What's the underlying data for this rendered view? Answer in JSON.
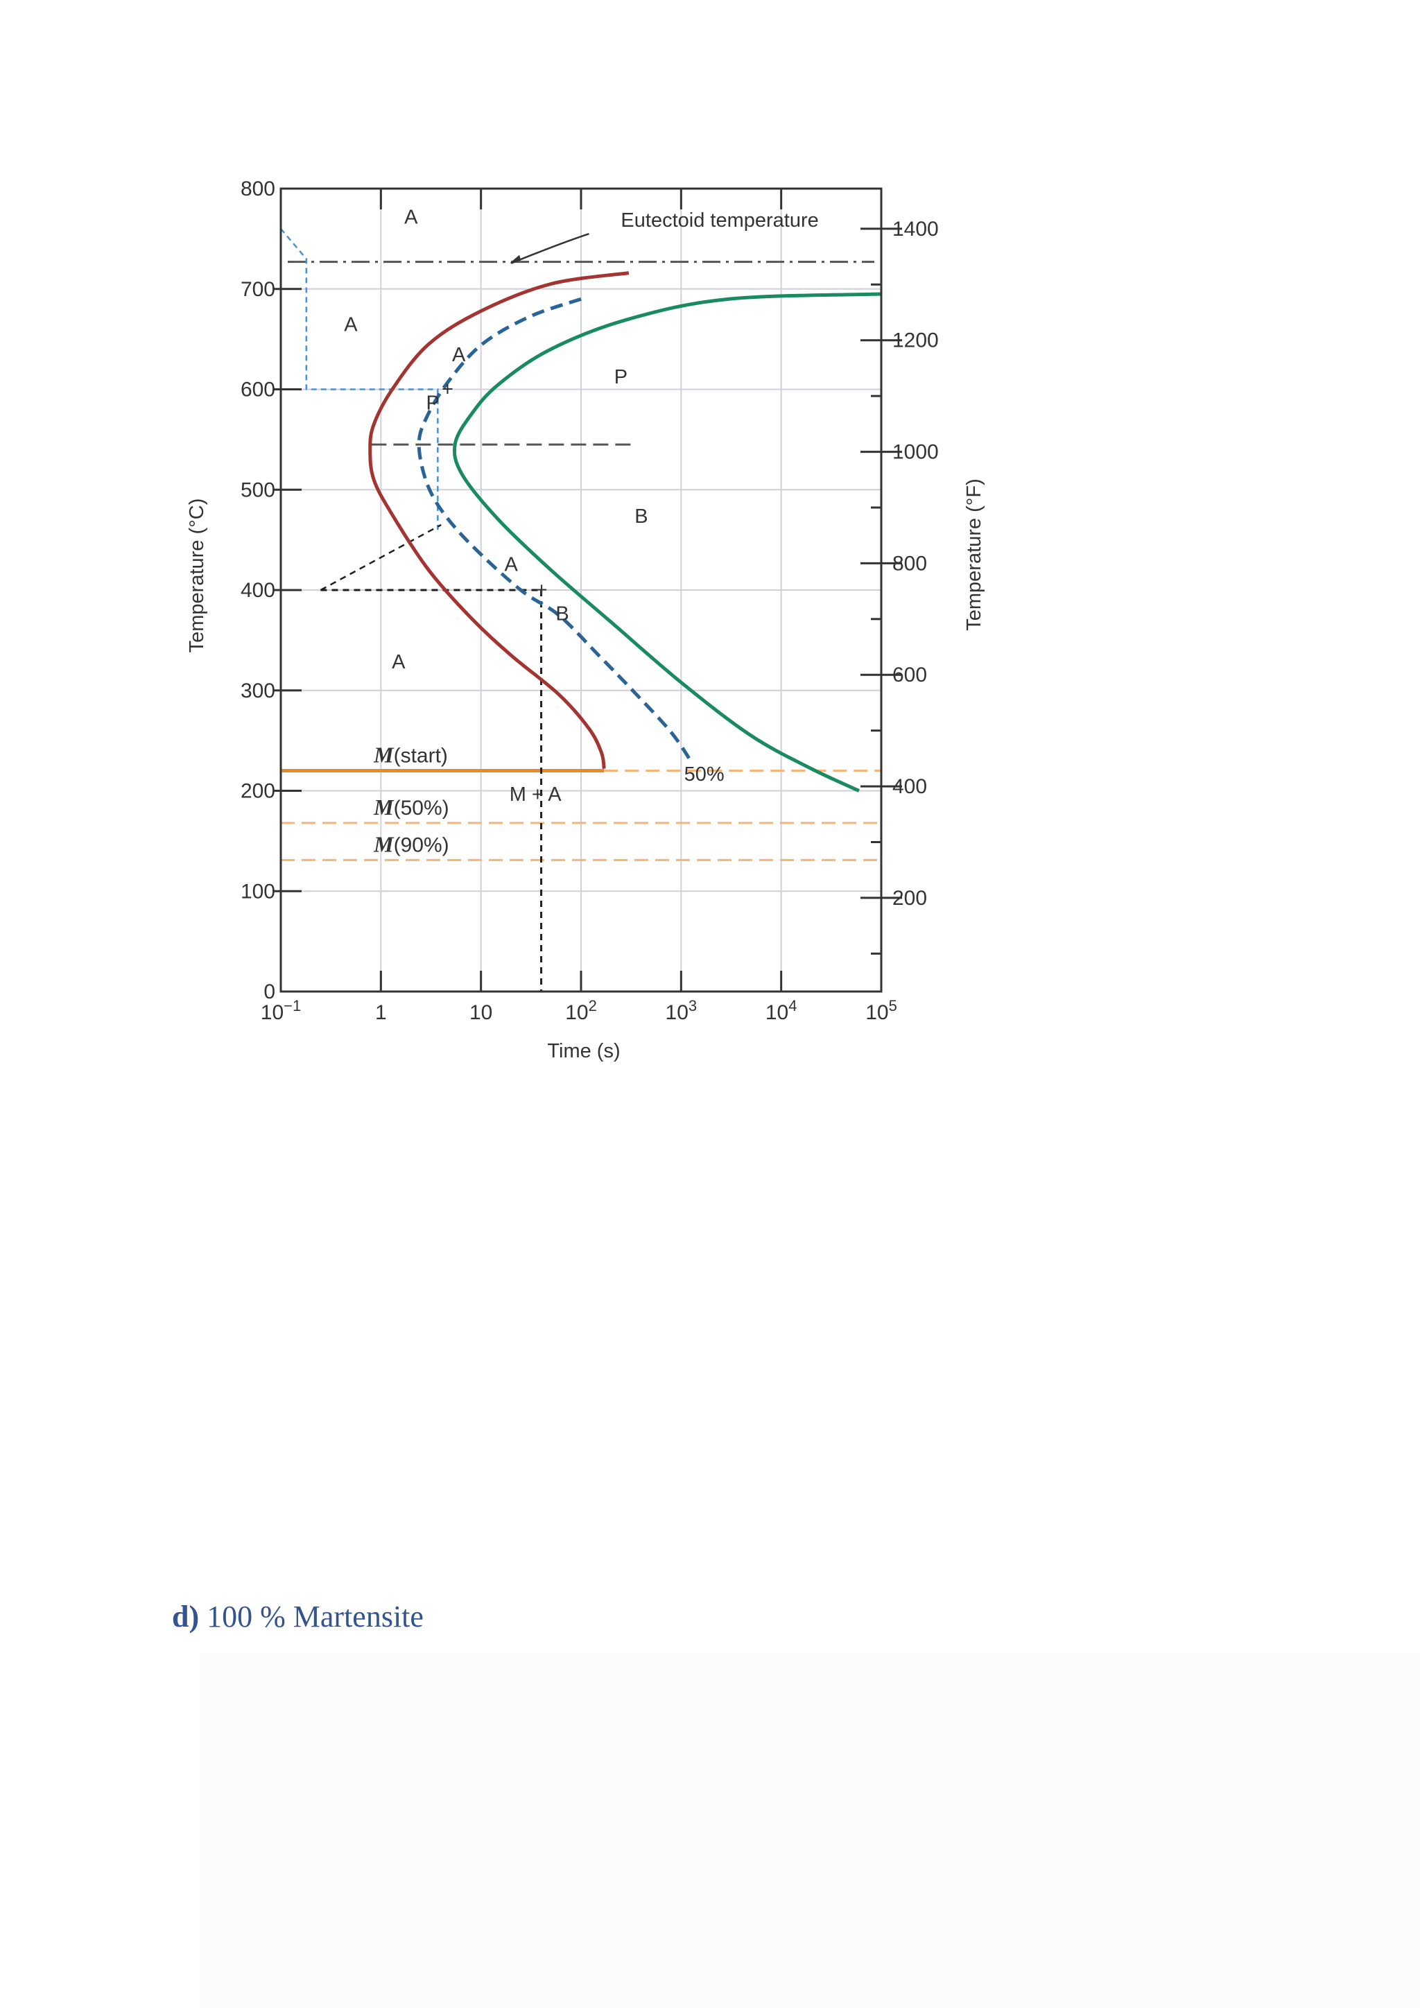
{
  "chart_data": {
    "type": "line",
    "x_scale": "log",
    "xlim": [
      0.1,
      100000
    ],
    "ylim": [
      0,
      800
    ],
    "y2lim_F": [
      32,
      1472
    ],
    "xlabel": "Time (s)",
    "ylabel": "Temperature (°C)",
    "y2label": "Temperature (°F)",
    "x_ticks": [
      {
        "v": 0.1,
        "base": "10",
        "exp": "−1"
      },
      {
        "v": 1,
        "base": "1",
        "exp": ""
      },
      {
        "v": 10,
        "base": "10",
        "exp": ""
      },
      {
        "v": 100,
        "base": "10",
        "exp": "2"
      },
      {
        "v": 1000,
        "base": "10",
        "exp": "3"
      },
      {
        "v": 10000,
        "base": "10",
        "exp": "4"
      },
      {
        "v": 100000,
        "base": "10",
        "exp": "5"
      }
    ],
    "y_ticks": [
      0,
      100,
      200,
      300,
      400,
      500,
      600,
      700,
      800
    ],
    "y2_ticks": [
      200,
      400,
      600,
      800,
      1000,
      1200,
      1400
    ],
    "eutectoid_temperature": 727,
    "eutectoid_label": "Eutectoid temperature",
    "series": [
      {
        "key": "start",
        "color": "#a43431",
        "dash": "",
        "points": [
          [
            300,
            716
          ],
          [
            50,
            705
          ],
          [
            10,
            678
          ],
          [
            3,
            645
          ],
          [
            1.3,
            600
          ],
          [
            0.85,
            565
          ],
          [
            0.78,
            540
          ],
          [
            0.85,
            510
          ],
          [
            1.3,
            475
          ],
          [
            3,
            420
          ],
          [
            8,
            372
          ],
          [
            20,
            335
          ],
          [
            60,
            296
          ],
          [
            120,
            262
          ],
          [
            160,
            238
          ],
          [
            170,
            222
          ]
        ]
      },
      {
        "key": "half",
        "color": "#2a6496",
        "dash": "18,10",
        "points": [
          [
            100,
            690
          ],
          [
            30,
            672
          ],
          [
            10,
            644
          ],
          [
            4.5,
            605
          ],
          [
            2.8,
            570
          ],
          [
            2.4,
            545
          ],
          [
            2.8,
            510
          ],
          [
            4,
            480
          ],
          [
            8,
            445
          ],
          [
            25,
            400
          ],
          [
            60,
            375
          ],
          [
            150,
            335
          ],
          [
            350,
            297
          ],
          [
            800,
            258
          ],
          [
            1300,
            227
          ]
        ]
      },
      {
        "key": "finish",
        "color": "#1a8a60",
        "dash": "",
        "points": [
          [
            100000,
            695
          ],
          [
            3000,
            690
          ],
          [
            300,
            670
          ],
          [
            50,
            640
          ],
          [
            15,
            605
          ],
          [
            8,
            575
          ],
          [
            5.5,
            545
          ],
          [
            6.5,
            515
          ],
          [
            15,
            470
          ],
          [
            50,
            420
          ],
          [
            200,
            368
          ],
          [
            1000,
            308
          ],
          [
            5000,
            255
          ],
          [
            20000,
            222
          ],
          [
            60000,
            200
          ]
        ]
      }
    ],
    "martensite_lines": [
      {
        "label": "M(start)",
        "letter": "M",
        "rest": "(start)",
        "temp": 220
      },
      {
        "label": "M(50%)",
        "letter": "M",
        "rest": "(50%)",
        "temp": 168
      },
      {
        "label": "M(90%)",
        "letter": "M",
        "rest": "(90%)",
        "temp": 131
      }
    ],
    "region_labels": [
      {
        "text": "A",
        "t": 2,
        "T": 765
      },
      {
        "text": "A",
        "t": 0.5,
        "T": 658
      },
      {
        "text": "A",
        "t": 6,
        "T": 628
      },
      {
        "text": "P",
        "t": 250,
        "T": 606
      },
      {
        "text": "P",
        "t": 3.3,
        "T": 580
      },
      {
        "text": "B",
        "t": 400,
        "T": 467
      },
      {
        "text": "A",
        "t": 20,
        "T": 419
      },
      {
        "text": "B",
        "t": 65,
        "T": 370
      },
      {
        "text": "A",
        "t": 1.5,
        "T": 322
      },
      {
        "text": "M + A",
        "t": 35,
        "T": 190
      },
      {
        "text": "50%",
        "t": 1700,
        "T": 210
      }
    ],
    "paths": [
      {
        "key": "blue-path",
        "color": "#4a8fd3",
        "points": [
          [
            0.1,
            760
          ],
          [
            0.18,
            730
          ],
          [
            0.18,
            600
          ],
          [
            3.7,
            600
          ],
          [
            3.7,
            460
          ],
          [
            4,
            460
          ]
        ]
      },
      {
        "key": "black-path",
        "color": "#1f1f1f",
        "points": [
          [
            0.25,
            400
          ],
          [
            4,
            465
          ]
        ],
        "hline": [
          [
            0.25,
            400
          ],
          [
            40,
            400
          ]
        ],
        "vline": [
          [
            40,
            400
          ],
          [
            40,
            0
          ]
        ]
      }
    ]
  },
  "caption": {
    "letter": "d)",
    "text": "100 % Martensite"
  }
}
